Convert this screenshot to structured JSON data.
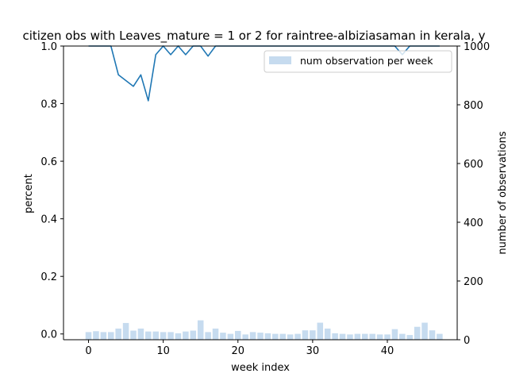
{
  "chart_data": {
    "type": "bar+line",
    "title": "citizen obs with Leaves_mature = 1 or 2 for raintree-albiziasaman in kerala, y",
    "xlabel": "week index",
    "ylabel": "percent",
    "ylabel_right": "number of observations",
    "xlim": [
      -3.35,
      49.35
    ],
    "ylim": [
      -0.02,
      1.0
    ],
    "ylim_right": [
      0,
      1000
    ],
    "xticks": [
      0,
      10,
      20,
      30,
      40
    ],
    "yticks": [
      0.0,
      0.2,
      0.4,
      0.6,
      0.8,
      1.0
    ],
    "yticks_right": [
      0,
      200,
      400,
      600,
      800,
      1000
    ],
    "legend": {
      "position": "top-right",
      "entries": [
        "num observation per week"
      ]
    },
    "colors": {
      "line": "#1f77b4",
      "bars": "#c6dbef"
    },
    "x": [
      0,
      1,
      2,
      3,
      4,
      5,
      6,
      7,
      8,
      9,
      10,
      11,
      12,
      13,
      14,
      15,
      16,
      17,
      18,
      19,
      20,
      21,
      22,
      23,
      24,
      25,
      26,
      27,
      28,
      29,
      30,
      31,
      32,
      33,
      34,
      35,
      36,
      37,
      38,
      39,
      40,
      41,
      42,
      43,
      44,
      45,
      46,
      47
    ],
    "series": [
      {
        "name": "percent",
        "axis": "left",
        "type": "line",
        "values": [
          1.0,
          1.0,
          1.0,
          1.0,
          0.9,
          0.88,
          0.86,
          0.9,
          0.81,
          0.97,
          1.0,
          0.97,
          1.0,
          0.97,
          1.0,
          1.0,
          0.965,
          1.0,
          1.0,
          1.0,
          1.0,
          1.0,
          1.0,
          1.0,
          1.0,
          1.0,
          1.0,
          1.0,
          1.0,
          1.0,
          1.0,
          1.0,
          1.0,
          1.0,
          1.0,
          1.0,
          1.0,
          1.0,
          1.0,
          1.0,
          1.0,
          1.0,
          0.97,
          1.0,
          1.0,
          1.0,
          1.0,
          1.0
        ]
      },
      {
        "name": "num observation per week",
        "axis": "right",
        "type": "bar",
        "values": [
          26,
          29,
          26,
          26,
          38,
          57,
          31,
          38,
          28,
          28,
          26,
          26,
          22,
          28,
          31,
          66,
          26,
          38,
          24,
          20,
          30,
          18,
          26,
          24,
          22,
          20,
          20,
          18,
          20,
          32,
          32,
          58,
          38,
          22,
          20,
          18,
          20,
          20,
          20,
          18,
          18,
          36,
          20,
          16,
          44,
          58,
          32,
          20
        ]
      }
    ]
  }
}
